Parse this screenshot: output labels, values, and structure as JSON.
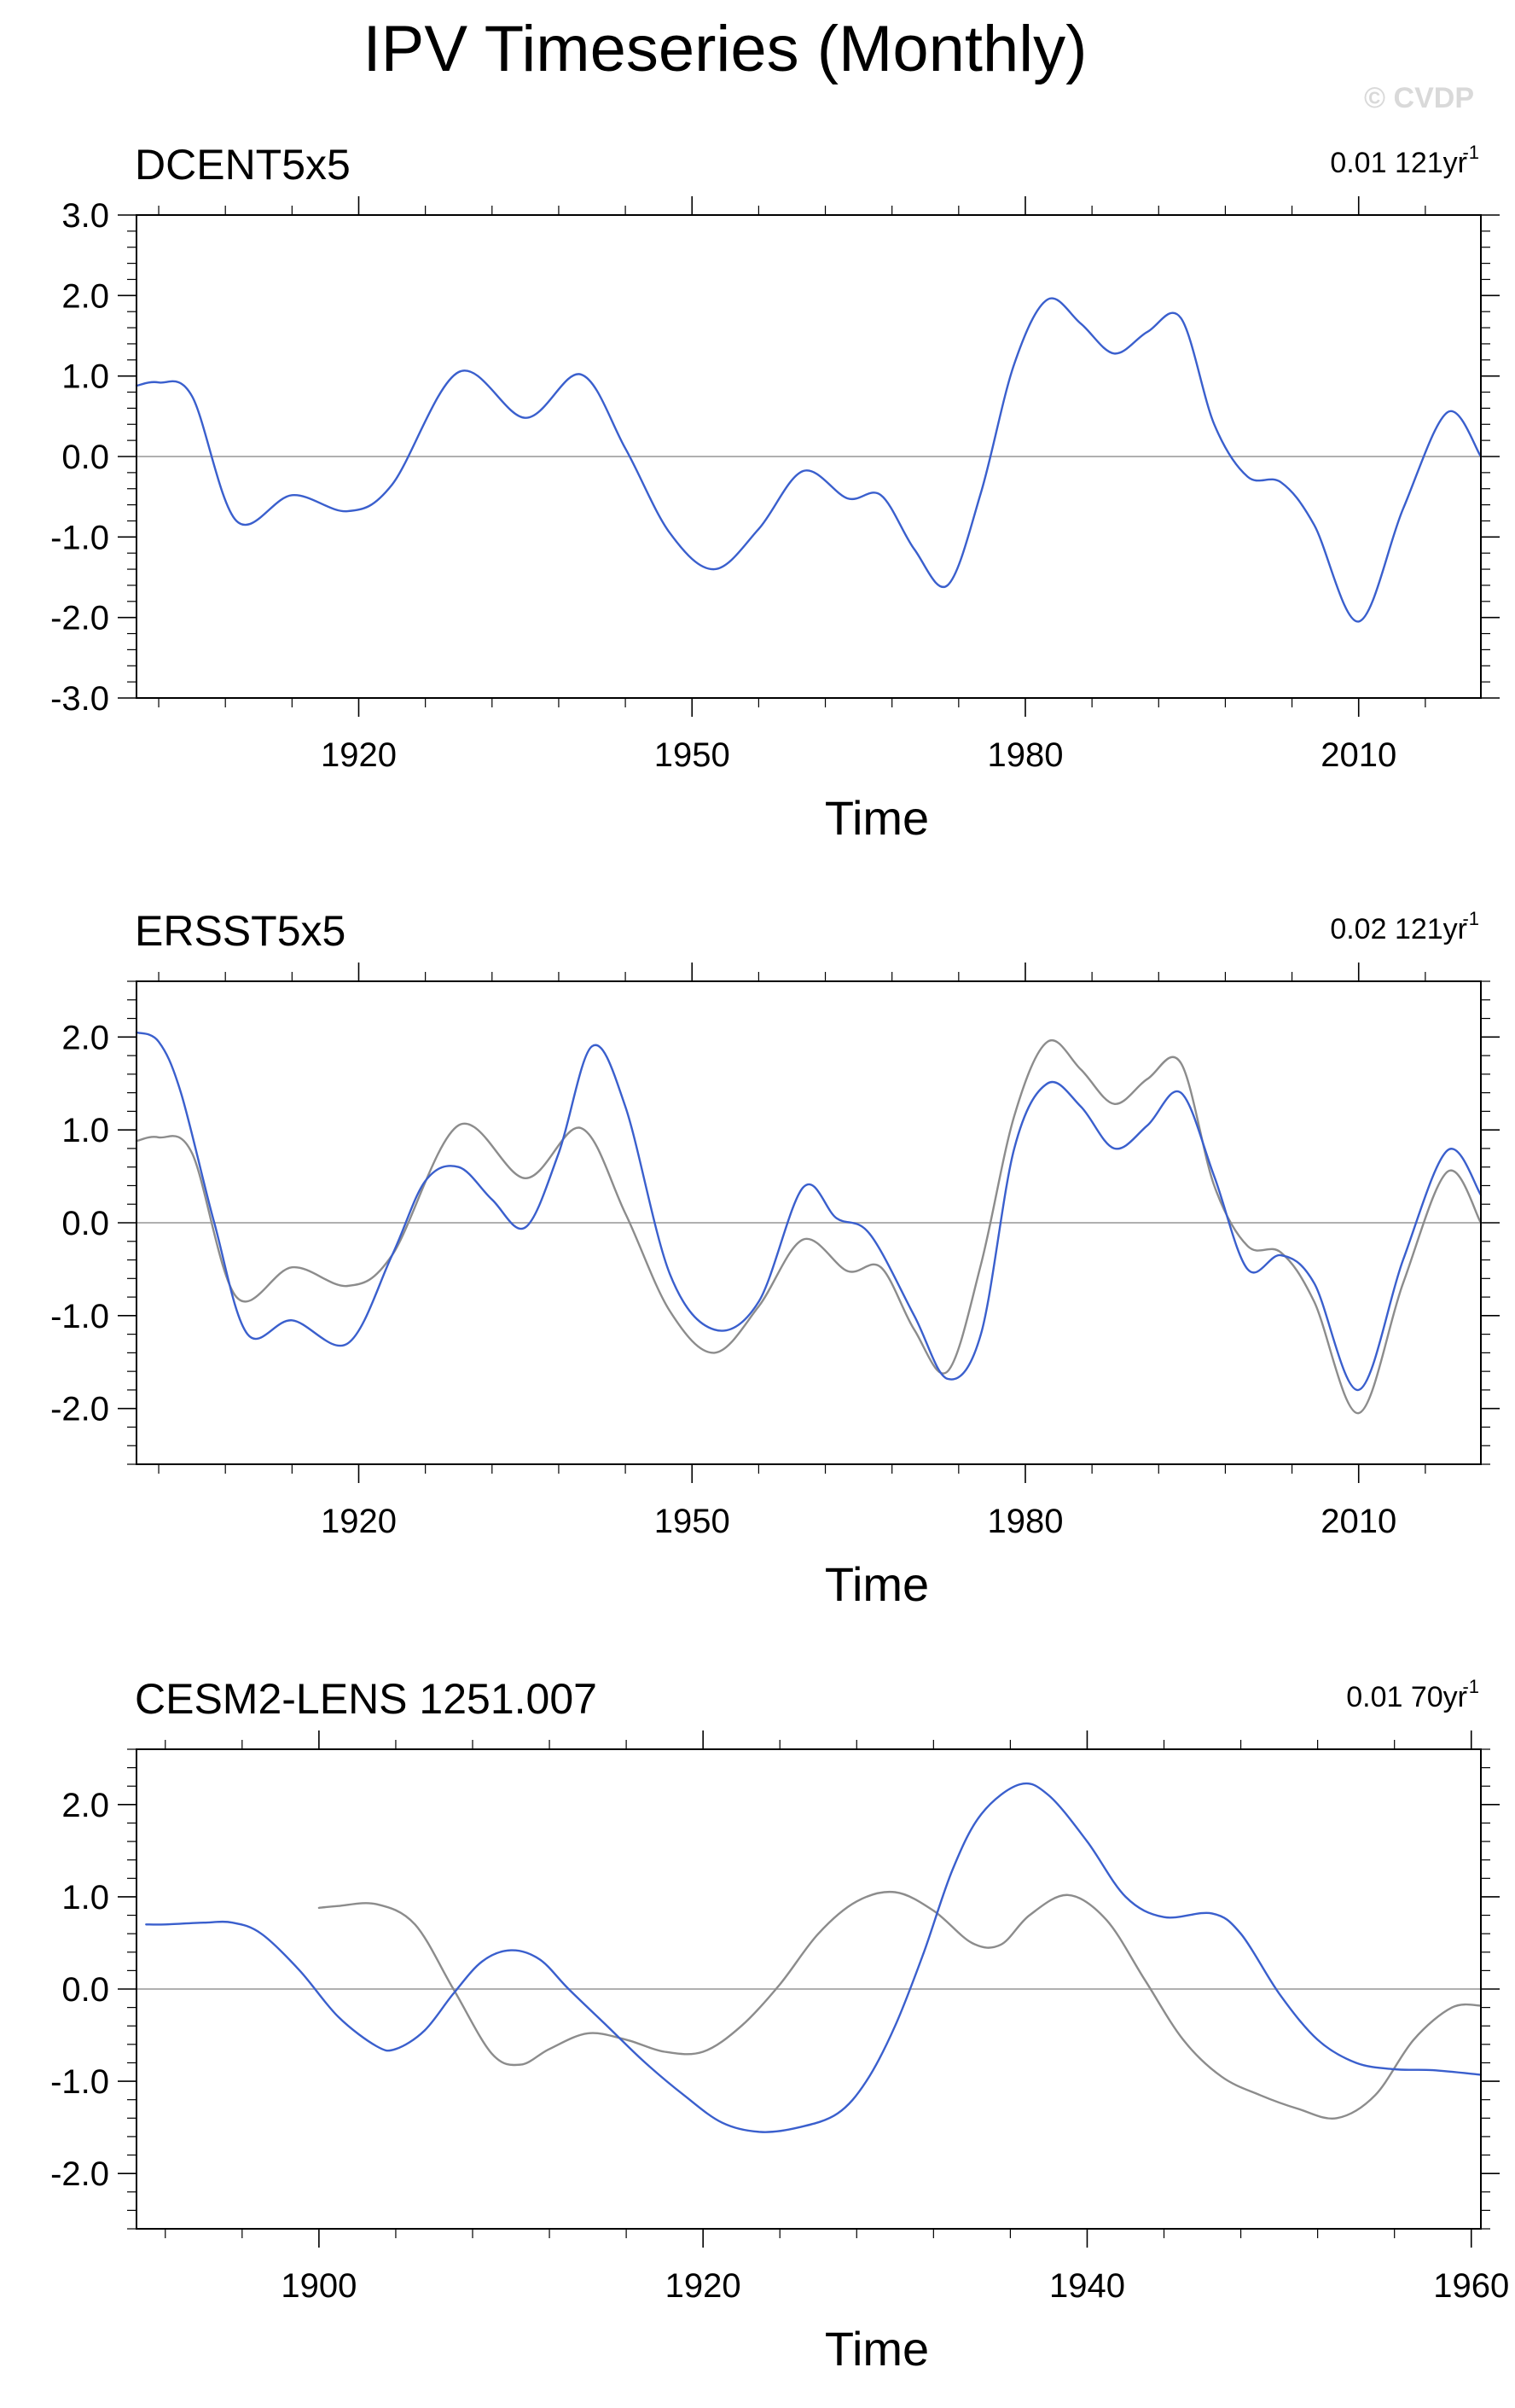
{
  "page": {
    "title": "IPV Timeseries (Monthly)",
    "watermark": "© CVDP"
  },
  "chart_data": [
    {
      "type": "line",
      "title": "DCENT5x5",
      "trend_label": "0.01 121yr",
      "trend_exp": "-1",
      "xlabel": "Time",
      "ylabel": "",
      "xlim": [
        1900,
        2021
      ],
      "ylim": [
        -3.0,
        3.0
      ],
      "yticks": [
        -3.0,
        -2.0,
        -1.0,
        0.0,
        1.0,
        2.0,
        3.0
      ],
      "xticks": [
        1920,
        1950,
        1980,
        2010
      ],
      "grid": false,
      "series": [
        {
          "color": "#3a5fcd",
          "x": [
            1900,
            1902,
            1905,
            1909,
            1914,
            1919,
            1923,
            1929,
            1935,
            1940,
            1944,
            1948,
            1952,
            1956,
            1960,
            1964,
            1967,
            1970,
            1973,
            1976,
            1979,
            1982,
            1985,
            1988,
            1991,
            1994,
            1997,
            2000,
            2003,
            2006,
            2010,
            2014,
            2018,
            2021
          ],
          "y": [
            0.88,
            0.92,
            0.75,
            -0.8,
            -0.48,
            -0.68,
            -0.35,
            1.05,
            0.48,
            1.02,
            0.1,
            -0.95,
            -1.4,
            -0.9,
            -0.18,
            -0.52,
            -0.48,
            -1.15,
            -1.6,
            -0.45,
            1.15,
            1.95,
            1.65,
            1.28,
            1.55,
            1.72,
            0.4,
            -0.25,
            -0.32,
            -0.85,
            -2.05,
            -0.65,
            0.55,
            0.0
          ]
        }
      ]
    },
    {
      "type": "line",
      "title": "ERSST5x5",
      "trend_label": "0.02 121yr",
      "trend_exp": "-1",
      "xlabel": "Time",
      "ylabel": "",
      "xlim": [
        1900,
        2021
      ],
      "ylim": [
        -2.6,
        2.6
      ],
      "yticks": [
        -2.0,
        -1.0,
        0.0,
        1.0,
        2.0
      ],
      "xticks": [
        1920,
        1950,
        1980,
        2010
      ],
      "grid": false,
      "series": [
        {
          "color": "#3a5fcd",
          "x": [
            1900,
            1902,
            1904,
            1907,
            1910,
            1914,
            1919,
            1923,
            1926,
            1929,
            1932,
            1935,
            1938,
            1941,
            1944,
            1948,
            1952,
            1956,
            1960,
            1963,
            1966,
            1970,
            1973,
            1976,
            1979,
            1982,
            1985,
            1988,
            1991,
            1994,
            1997,
            2000,
            2003,
            2006,
            2010,
            2014,
            2018,
            2021
          ],
          "y": [
            2.05,
            1.95,
            1.4,
            0.0,
            -1.2,
            -1.05,
            -1.3,
            -0.35,
            0.45,
            0.6,
            0.25,
            -0.05,
            0.75,
            1.9,
            1.25,
            -0.55,
            -1.15,
            -0.85,
            0.38,
            0.05,
            -0.12,
            -1.0,
            -1.68,
            -1.2,
            0.8,
            1.5,
            1.25,
            0.8,
            1.05,
            1.4,
            0.5,
            -0.5,
            -0.35,
            -0.65,
            -1.8,
            -0.4,
            0.78,
            0.3
          ]
        },
        {
          "color": "#8c8c8c",
          "x": [
            1900,
            1902,
            1905,
            1909,
            1914,
            1919,
            1923,
            1929,
            1935,
            1940,
            1944,
            1948,
            1952,
            1956,
            1960,
            1964,
            1967,
            1970,
            1973,
            1976,
            1979,
            1982,
            1985,
            1988,
            1991,
            1994,
            1997,
            2000,
            2003,
            2006,
            2010,
            2014,
            2018,
            2021
          ],
          "y": [
            0.88,
            0.92,
            0.75,
            -0.8,
            -0.48,
            -0.68,
            -0.35,
            1.05,
            0.48,
            1.02,
            0.1,
            -0.95,
            -1.4,
            -0.9,
            -0.18,
            -0.52,
            -0.48,
            -1.15,
            -1.6,
            -0.45,
            1.15,
            1.95,
            1.65,
            1.28,
            1.55,
            1.72,
            0.4,
            -0.25,
            -0.32,
            -0.85,
            -2.05,
            -0.65,
            0.55,
            0.0
          ]
        }
      ]
    },
    {
      "type": "line",
      "title": "CESM2-LENS 1251.007",
      "trend_label": "0.01 70yr",
      "trend_exp": "-1",
      "xlabel": "Time",
      "ylabel": "",
      "xlim": [
        1890.5,
        1960.5
      ],
      "ylim": [
        -2.6,
        2.6
      ],
      "yticks": [
        -2.0,
        -1.0,
        0.0,
        1.0,
        2.0
      ],
      "xticks": [
        1900,
        1920,
        1940,
        1960
      ],
      "grid": false,
      "series": [
        {
          "color": "#3a5fcd",
          "x": [
            1891,
            1892,
            1894,
            1895.5,
            1897,
            1899,
            1901,
            1903,
            1904,
            1905.5,
            1907,
            1908.5,
            1910,
            1911.5,
            1913,
            1915,
            1917,
            1919,
            1921,
            1923,
            1925,
            1927,
            1928.5,
            1930,
            1931.5,
            1933,
            1934.5,
            1936.5,
            1938,
            1940,
            1942,
            1944,
            1946.5,
            1948,
            1950,
            1952,
            1954,
            1956,
            1958,
            1960.5
          ],
          "y": [
            0.7,
            0.7,
            0.72,
            0.72,
            0.6,
            0.2,
            -0.3,
            -0.62,
            -0.65,
            -0.45,
            -0.05,
            0.3,
            0.42,
            0.32,
            0.0,
            -0.4,
            -0.8,
            -1.15,
            -1.45,
            -1.55,
            -1.5,
            -1.35,
            -1.0,
            -0.4,
            0.4,
            1.3,
            1.9,
            2.22,
            2.1,
            1.6,
            1.0,
            0.78,
            0.82,
            0.6,
            -0.05,
            -0.55,
            -0.8,
            -0.87,
            -0.88,
            -0.93
          ]
        },
        {
          "color": "#8c8c8c",
          "x": [
            1900,
            1901,
            1903,
            1905,
            1907,
            1909,
            1910.5,
            1912,
            1914,
            1916,
            1918,
            1920,
            1922,
            1924,
            1926,
            1928,
            1930,
            1932,
            1934,
            1935.5,
            1937,
            1939,
            1941,
            1943,
            1945,
            1947,
            1949,
            1951,
            1953,
            1955,
            1957,
            1959,
            1960.5
          ],
          "y": [
            0.88,
            0.9,
            0.92,
            0.7,
            0.0,
            -0.7,
            -0.82,
            -0.65,
            -0.48,
            -0.55,
            -0.68,
            -0.68,
            -0.4,
            0.05,
            0.6,
            0.95,
            1.05,
            0.85,
            0.5,
            0.48,
            0.8,
            1.02,
            0.75,
            0.1,
            -0.55,
            -0.95,
            -1.15,
            -1.3,
            -1.4,
            -1.15,
            -0.55,
            -0.2,
            -0.18
          ]
        }
      ]
    }
  ]
}
